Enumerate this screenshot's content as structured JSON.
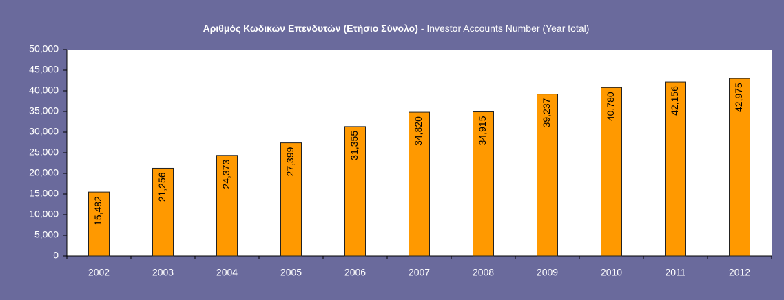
{
  "chart_data": {
    "type": "bar",
    "title": "Αριθμός Κωδικών Επενδυτών (Ετήσιο Σύνολο)",
    "subtitle": "- Investor Accounts Number (Year total)",
    "categories": [
      "2002",
      "2003",
      "2004",
      "2005",
      "2006",
      "2007",
      "2008",
      "2009",
      "2010",
      "2011",
      "2012"
    ],
    "values": [
      15482,
      21256,
      24373,
      27399,
      31355,
      34820,
      34915,
      39237,
      40780,
      42156,
      42975
    ],
    "value_labels": [
      "15,482",
      "21,256",
      "24,373",
      "27,399",
      "31,355",
      "34,820",
      "34,915",
      "39,237",
      "40,780",
      "42,156",
      "42,975"
    ],
    "color": "#ff9900",
    "ylim": [
      0,
      50000
    ],
    "yticks": [
      0,
      {
        "value": 5000,
        "label": "5,000"
      },
      {
        "value": 10000,
        "label": "10,000"
      },
      {
        "value": 15000,
        "label": "15,000"
      },
      {
        "value": 20000,
        "label": "20,000"
      },
      {
        "value": 25000,
        "label": "25,000"
      },
      {
        "value": 30000,
        "label": "30,000"
      },
      {
        "value": 35000,
        "label": "35,000"
      },
      {
        "value": 40000,
        "label": "40,000"
      },
      {
        "value": 45000,
        "label": "45,000"
      },
      {
        "value": 50000,
        "label": "50,000"
      }
    ],
    "grid": false
  }
}
